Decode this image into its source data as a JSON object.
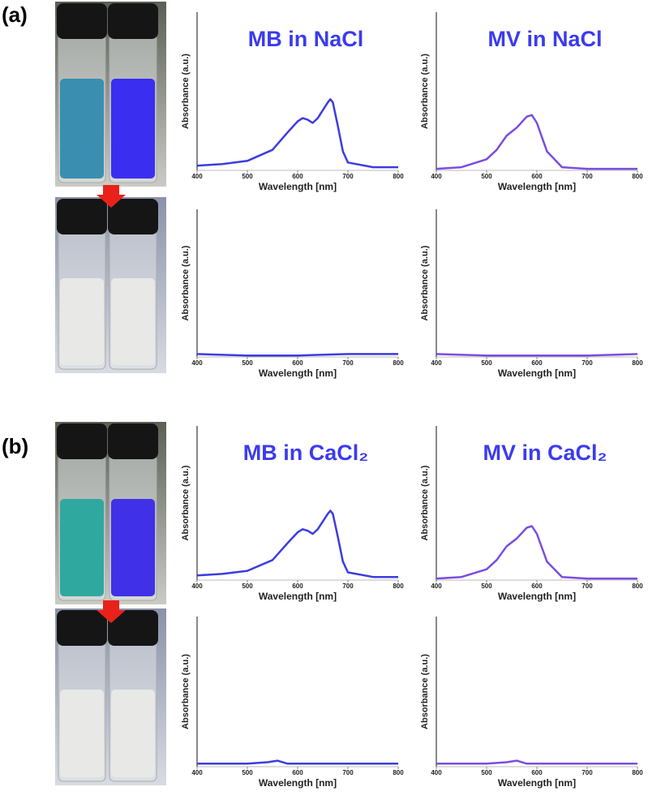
{
  "panel_labels": [
    "(a)",
    "(b)"
  ],
  "chart_data": [
    {
      "type": "line",
      "title": "MB in NaCl",
      "x_label": "Wavelength [nm]",
      "y_label": "Absorbance (a.u.)",
      "color": "#3c3ce0",
      "x": [
        400,
        450,
        500,
        550,
        580,
        600,
        610,
        620,
        630,
        640,
        650,
        660,
        665,
        670,
        680,
        690,
        700,
        750,
        800
      ],
      "values": [
        0.03,
        0.04,
        0.06,
        0.13,
        0.24,
        0.31,
        0.33,
        0.32,
        0.3,
        0.33,
        0.38,
        0.43,
        0.45,
        0.43,
        0.28,
        0.12,
        0.05,
        0.02,
        0.02
      ],
      "xlim": [
        400,
        800
      ],
      "xticks": [
        400,
        500,
        600,
        700,
        800
      ],
      "ylim": [
        0,
        1
      ]
    },
    {
      "type": "line",
      "title": "MV in NaCl",
      "x_label": "Wavelength [nm]",
      "y_label": "Absorbance (a.u.)",
      "color": "#7a4de0",
      "x": [
        400,
        450,
        500,
        520,
        540,
        560,
        580,
        590,
        600,
        620,
        650,
        700,
        800
      ],
      "values": [
        0.01,
        0.02,
        0.07,
        0.13,
        0.22,
        0.27,
        0.34,
        0.35,
        0.3,
        0.12,
        0.02,
        0.01,
        0.01
      ],
      "xlim": [
        400,
        800
      ],
      "xticks": [
        400,
        500,
        600,
        700,
        800
      ],
      "ylim": [
        0,
        1
      ]
    },
    {
      "type": "line",
      "x_label": "Wavelength [nm]",
      "y_label": "Absorbance (a.u.)",
      "color": "#3c3ce0",
      "x": [
        400,
        500,
        600,
        700,
        800
      ],
      "values": [
        0.02,
        0.01,
        0.01,
        0.02,
        0.02
      ],
      "xlim": [
        400,
        800
      ],
      "xticks": [
        400,
        500,
        600,
        700,
        800
      ],
      "ylim": [
        0,
        1
      ]
    },
    {
      "type": "line",
      "x_label": "Wavelength [nm]",
      "y_label": "Absorbance (a.u.)",
      "color": "#7a4de0",
      "x": [
        400,
        500,
        600,
        700,
        800
      ],
      "values": [
        0.02,
        0.01,
        0.01,
        0.01,
        0.02
      ],
      "xlim": [
        400,
        800
      ],
      "xticks": [
        400,
        500,
        600,
        700,
        800
      ],
      "ylim": [
        0,
        1
      ]
    },
    {
      "type": "line",
      "title": "MB in CaCl₂",
      "x_label": "Wavelength [nm]",
      "y_label": "Absorbance (a.u.)",
      "color": "#3c3ce0",
      "x": [
        400,
        450,
        500,
        550,
        580,
        600,
        610,
        620,
        630,
        640,
        650,
        660,
        665,
        670,
        680,
        690,
        700,
        750,
        800
      ],
      "values": [
        0.03,
        0.04,
        0.06,
        0.13,
        0.24,
        0.31,
        0.33,
        0.32,
        0.3,
        0.33,
        0.38,
        0.43,
        0.45,
        0.43,
        0.28,
        0.12,
        0.05,
        0.02,
        0.02
      ],
      "xlim": [
        400,
        800
      ],
      "xticks": [
        400,
        500,
        600,
        700,
        800
      ],
      "ylim": [
        0,
        1
      ]
    },
    {
      "type": "line",
      "title": "MV in CaCl₂",
      "x_label": "Wavelength [nm]",
      "y_label": "Absorbance (a.u.)",
      "color": "#7a4de0",
      "x": [
        400,
        450,
        500,
        520,
        540,
        560,
        580,
        590,
        600,
        620,
        650,
        700,
        800
      ],
      "values": [
        0.01,
        0.02,
        0.07,
        0.13,
        0.22,
        0.27,
        0.34,
        0.35,
        0.3,
        0.12,
        0.02,
        0.01,
        0.01
      ],
      "xlim": [
        400,
        800
      ],
      "xticks": [
        400,
        500,
        600,
        700,
        800
      ],
      "ylim": [
        0,
        1
      ]
    },
    {
      "type": "line",
      "x_label": "Wavelength [nm]",
      "y_label": "Absorbance (a.u.)",
      "color": "#3c3ce0",
      "x": [
        400,
        500,
        540,
        560,
        580,
        600,
        700,
        800
      ],
      "values": [
        0.02,
        0.02,
        0.03,
        0.04,
        0.02,
        0.02,
        0.02,
        0.02
      ],
      "xlim": [
        400,
        800
      ],
      "xticks": [
        400,
        500,
        600,
        700,
        800
      ],
      "ylim": [
        0,
        1
      ]
    },
    {
      "type": "line",
      "x_label": "Wavelength [nm]",
      "y_label": "Absorbance (a.u.)",
      "color": "#7a4de0",
      "x": [
        400,
        500,
        540,
        560,
        580,
        600,
        700,
        800
      ],
      "values": [
        0.02,
        0.02,
        0.03,
        0.04,
        0.02,
        0.02,
        0.02,
        0.02
      ],
      "xlim": [
        400,
        800
      ],
      "xticks": [
        400,
        500,
        600,
        700,
        800
      ],
      "ylim": [
        0,
        1
      ]
    }
  ]
}
